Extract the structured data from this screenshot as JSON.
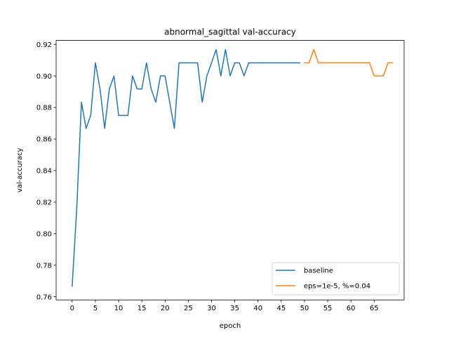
{
  "chart_data": {
    "type": "line",
    "title": "abnormal_sagittal val-accuracy",
    "xlabel": "epoch",
    "ylabel": "val-accuracy",
    "xlim": [
      -3.45,
      71.45
    ],
    "ylim": [
      0.758,
      0.9225
    ],
    "xticks": [
      0,
      5,
      10,
      15,
      20,
      25,
      30,
      35,
      40,
      45,
      50,
      55,
      60,
      65
    ],
    "xtick_labels": [
      "0",
      "5",
      "10",
      "15",
      "20",
      "25",
      "30",
      "35",
      "40",
      "45",
      "50",
      "55",
      "60",
      "65"
    ],
    "yticks": [
      0.76,
      0.78,
      0.8,
      0.82,
      0.84,
      0.86,
      0.88,
      0.9,
      0.92
    ],
    "ytick_labels": [
      "0.76",
      "0.78",
      "0.80",
      "0.82",
      "0.84",
      "0.86",
      "0.88",
      "0.90",
      "0.92"
    ],
    "grid": false,
    "legend_position": "lower right",
    "series": [
      {
        "name": "baseline",
        "color": "#1f77b4",
        "x": [
          0,
          1,
          2,
          3,
          4,
          5,
          6,
          7,
          8,
          9,
          10,
          11,
          12,
          13,
          14,
          15,
          16,
          17,
          18,
          19,
          20,
          21,
          22,
          23,
          24,
          25,
          26,
          27,
          28,
          29,
          30,
          31,
          32,
          33,
          34,
          35,
          36,
          37,
          38,
          39,
          40,
          41,
          42,
          43,
          44,
          45,
          46,
          47,
          48,
          49
        ],
        "y": [
          0.7667,
          0.8167,
          0.8833,
          0.8667,
          0.875,
          0.9083,
          0.8917,
          0.8667,
          0.8917,
          0.9,
          0.875,
          0.875,
          0.875,
          0.9,
          0.8917,
          0.8917,
          0.9083,
          0.8917,
          0.8833,
          0.9,
          0.9,
          0.8833,
          0.8667,
          0.9083,
          0.9083,
          0.9083,
          0.9083,
          0.9083,
          0.8833,
          0.9,
          0.9083,
          0.9167,
          0.9,
          0.9167,
          0.9,
          0.9083,
          0.9083,
          0.9,
          0.9083,
          0.9083,
          0.9083,
          0.9083,
          0.9083,
          0.9083,
          0.9083,
          0.9083,
          0.9083,
          0.9083,
          0.9083,
          0.9083
        ]
      },
      {
        "name": "eps=1e-5, %=0.04",
        "color": "#ff7f0e",
        "x": [
          50,
          51,
          52,
          53,
          54,
          55,
          56,
          57,
          58,
          59,
          60,
          61,
          62,
          63,
          64,
          65,
          66,
          67,
          68,
          69
        ],
        "y": [
          0.9083,
          0.9083,
          0.9167,
          0.9083,
          0.9083,
          0.9083,
          0.9083,
          0.9083,
          0.9083,
          0.9083,
          0.9083,
          0.9083,
          0.9083,
          0.9083,
          0.9083,
          0.9,
          0.9,
          0.9,
          0.9083,
          0.9083
        ]
      }
    ]
  }
}
